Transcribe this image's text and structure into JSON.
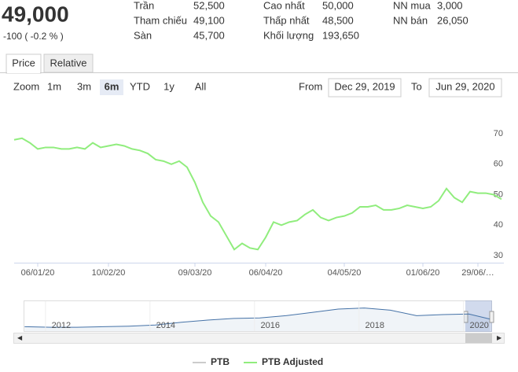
{
  "header": {
    "price": "49,000",
    "change": "-100 ( -0.2 % )",
    "color": "#e00000",
    "stats": [
      [
        {
          "label": "Trần",
          "value": "52,500",
          "color": "#cc00cc"
        },
        {
          "label": "Tham chiếu",
          "value": "49,100",
          "color": "#e07800"
        },
        {
          "label": "Sàn",
          "value": "45,700",
          "color": "#33bbcc"
        }
      ],
      [
        {
          "label": "Cao nhất",
          "value": "50,000",
          "color": "#009900"
        },
        {
          "label": "Thấp nhất",
          "value": "48,500",
          "color": "#e00000"
        },
        {
          "label": "Khối lượng",
          "value": "193,650",
          "color": "#000000"
        }
      ],
      [
        {
          "label": "NN mua",
          "value": "3,000",
          "color": "#000000"
        },
        {
          "label": "NN bán",
          "value": "26,050",
          "color": "#000000"
        }
      ]
    ]
  },
  "toolbar": {
    "tabs": [
      "Price",
      "Relative"
    ],
    "zoom_label": "Zoom",
    "zoom": [
      "1m",
      "3m",
      "6m",
      "YTD",
      "1y",
      "All"
    ],
    "from_label": "From",
    "from": "Dec 29, 2019",
    "to_label": "To",
    "to": "Jun 29, 2020"
  },
  "chart_data": [
    {
      "type": "line",
      "categories": [
        null,
        null,
        null,
        "06/01/20",
        null,
        null,
        null,
        null,
        null,
        null,
        null,
        null,
        "10/02/20",
        null,
        null,
        null,
        null,
        null,
        null,
        null,
        null,
        null,
        null,
        "09/03/20",
        null,
        null,
        null,
        null,
        null,
        null,
        null,
        null,
        "06/04/20",
        null,
        null,
        null,
        null,
        null,
        null,
        null,
        null,
        null,
        "04/05/20",
        null,
        null,
        null,
        null,
        null,
        null,
        null,
        null,
        null,
        "01/06/20",
        null,
        null,
        null,
        null,
        null,
        null,
        "29/06/…",
        null,
        null,
        null
      ],
      "series": [
        {
          "name": "PTB Adjusted",
          "color": "#90ed7d",
          "values": [
            68,
            68.5,
            67,
            65,
            65.5,
            65.5,
            65,
            65,
            65.5,
            65,
            67,
            65.5,
            66,
            66.5,
            66,
            65,
            64.5,
            63.5,
            61.5,
            61,
            60,
            61,
            59,
            54,
            47.5,
            43,
            41,
            36.5,
            32,
            34,
            32.5,
            32,
            36,
            41,
            40,
            41,
            41.5,
            43.5,
            45,
            42.5,
            41.5,
            42.5,
            43,
            44,
            46,
            46,
            46.5,
            45,
            45,
            45.5,
            46.5,
            46,
            45.5,
            46,
            48,
            52,
            49,
            47.5,
            51,
            50.5,
            50.5,
            50,
            48.5
          ]
        }
      ],
      "hidden_series": [
        {
          "name": "PTB",
          "color": "#cccccc"
        }
      ],
      "ylim": [
        30,
        70
      ],
      "yticks": [
        30,
        40,
        50,
        60,
        70
      ]
    },
    {
      "type": "area",
      "color": "#4572a7",
      "x": [
        2011.3,
        2011.8,
        2012.3,
        2012.8,
        2013.3,
        2013.8,
        2014.3,
        2014.8,
        2015.3,
        2015.8,
        2016.3,
        2016.8,
        2017.3,
        2017.8,
        2018.3,
        2018.8,
        2019.3,
        2019.8,
        2020.2
      ],
      "values": [
        8,
        7,
        7,
        8,
        9,
        11,
        16,
        20,
        23,
        24,
        28,
        34,
        40,
        42,
        38,
        28,
        30,
        31,
        22
      ],
      "xlim": [
        2011.28,
        2020.23
      ],
      "xticks": [
        2012,
        2014,
        2016,
        2018,
        2020
      ],
      "ylim": [
        0,
        50
      ]
    }
  ]
}
